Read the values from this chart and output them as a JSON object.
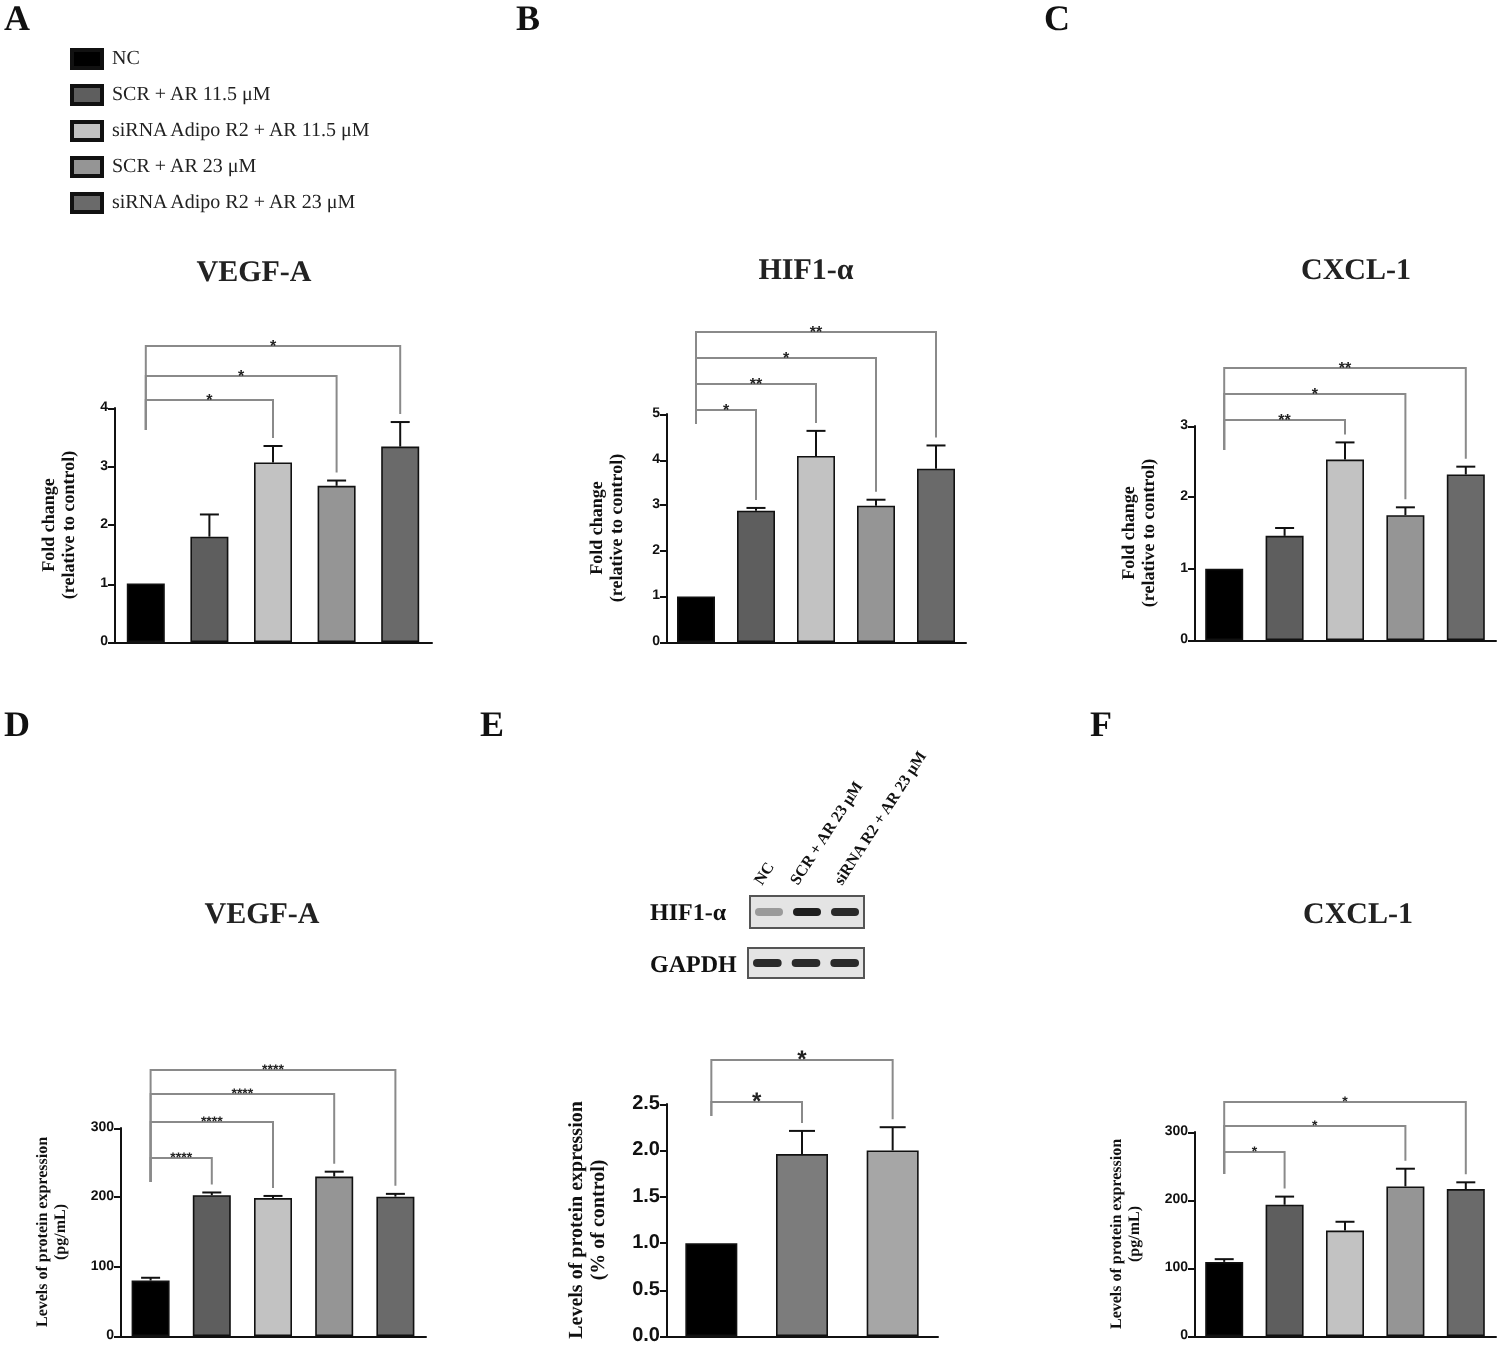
{
  "chart_data": [
    {
      "type": "bar",
      "title": "VEGF-A",
      "ylabel": "Fold change\n(relative to control)",
      "categories": [
        null,
        null,
        null,
        null,
        null
      ],
      "series": [
        {
          "name": "NC",
          "color": "#000000",
          "values": [
            1.0,
            null,
            null,
            null,
            null
          ]
        },
        {
          "name": "SCR + AR 11.5 μM",
          "color": "#5e5e5e",
          "values": [
            null,
            1.8,
            null,
            null,
            null
          ],
          "errors": [
            null,
            [
              1.8,
              2.18
            ],
            null,
            null,
            null
          ]
        },
        {
          "name": "siRNA Adipo R2 + AR 11.5 μM",
          "color": "#c2c2c2",
          "values": [
            null,
            null,
            3.07,
            null,
            null
          ],
          "errors": [
            null,
            null,
            [
              3.07,
              3.35
            ],
            null,
            null
          ]
        },
        {
          "name": "SCR + AR 23 μM",
          "color": "#959595",
          "values": [
            null,
            null,
            null,
            2.67,
            null
          ],
          "errors": [
            null,
            null,
            null,
            [
              2.67,
              2.76
            ],
            null
          ]
        },
        {
          "name": "siRNA Adipo R2 + AR 23 μM",
          "color": "#6a6a6a",
          "values": [
            null,
            null,
            null,
            null,
            3.34
          ],
          "errors": [
            null,
            null,
            null,
            null,
            [
              3.34,
              3.76
            ]
          ]
        }
      ],
      "ylim": [
        0,
        4
      ],
      "yticks": [
        0,
        1,
        2,
        3,
        4
      ],
      "legend": "top left",
      "annotations": [
        "A",
        "*",
        "*",
        "*"
      ]
    },
    {
      "type": "bar",
      "title": "HIF1-α",
      "ylabel": "Fold change\n(relative to control)",
      "categories": [
        null,
        null,
        null,
        null,
        null
      ],
      "values": [
        1.0,
        2.88,
        4.08,
        2.99,
        3.8
      ],
      "colors": [
        "#000000",
        "#5e5e5e",
        "#c2c2c2",
        "#959595",
        "#6a6a6a"
      ],
      "errors": [
        null,
        [
          2.88,
          2.94
        ],
        [
          4.08,
          4.63
        ],
        [
          2.99,
          3.12
        ],
        [
          3.8,
          4.31
        ]
      ],
      "ylim": [
        0,
        5
      ],
      "yticks": [
        0,
        1,
        2,
        3,
        4,
        5
      ],
      "annotations": [
        "B",
        "*",
        "**",
        "*",
        "**"
      ]
    },
    {
      "type": "bar",
      "title": "CXCL-1",
      "ylabel": "Fold change\n(relative to control)",
      "categories": [
        null,
        null,
        null,
        null,
        null
      ],
      "values": [
        1.0,
        1.46,
        2.53,
        1.75,
        2.32
      ],
      "colors": [
        "#000000",
        "#5e5e5e",
        "#c2c2c2",
        "#959595",
        "#6a6a6a"
      ],
      "errors": [
        null,
        [
          1.46,
          1.57
        ],
        [
          2.53,
          2.77
        ],
        [
          1.75,
          1.86
        ],
        [
          2.32,
          2.43
        ]
      ],
      "ylim": [
        0,
        3
      ],
      "yticks": [
        0,
        1,
        2,
        3
      ],
      "annotations": [
        "C",
        "**",
        "*",
        "**"
      ]
    },
    {
      "type": "bar",
      "title": "VEGF-A",
      "ylabel": "Levels of protein expression\n(pg/mL)",
      "categories": [
        null,
        null,
        null,
        null,
        null
      ],
      "values": [
        80,
        203,
        199,
        230,
        201
      ],
      "colors": [
        "#000000",
        "#5e5e5e",
        "#c2c2c2",
        "#959595",
        "#6a6a6a"
      ],
      "errors": [
        [
          80,
          84
        ],
        [
          203,
          207
        ],
        [
          199,
          202
        ],
        [
          230,
          237
        ],
        [
          201,
          205
        ]
      ],
      "ylim": [
        0,
        300
      ],
      "yticks": [
        0,
        100,
        200,
        300
      ],
      "annotations": [
        "D",
        "****",
        "****",
        "****",
        "****"
      ]
    },
    {
      "type": "bar",
      "ylabel": "Levels of protein expression\n(% of control)",
      "categories": [
        null,
        null,
        null
      ],
      "values": [
        1.0,
        1.96,
        2.0
      ],
      "colors": [
        "#000000",
        "#7c7c7c",
        "#a6a6a6"
      ],
      "errors": [
        null,
        [
          1.96,
          2.21
        ],
        [
          2.0,
          2.25
        ]
      ],
      "ylim": [
        0,
        2.5
      ],
      "yticks": [
        {
          "value": 0,
          "label": "0.0"
        },
        0.5,
        {
          "value": 1,
          "label": "1.0"
        },
        1.5,
        {
          "value": 2,
          "label": "2.0"
        },
        2.5
      ],
      "annotations": [
        "E",
        "HIF1-α",
        "GAPDH",
        "NC",
        "SCR + AR 23 μM",
        "siRNA R2 + AR 23 μM",
        "*",
        "*"
      ]
    },
    {
      "type": "bar",
      "title": "CXCL-1",
      "ylabel": "Levels of protein expression\n(pg/mL)",
      "categories": [
        null,
        null,
        null,
        null,
        null
      ],
      "values": [
        109,
        193,
        155,
        220,
        216
      ],
      "colors": [
        "#000000",
        "#5e5e5e",
        "#c2c2c2",
        "#959595",
        "#6a6a6a"
      ],
      "errors": [
        [
          109,
          113
        ],
        [
          193,
          205
        ],
        [
          155,
          168
        ],
        [
          220,
          246
        ],
        [
          216,
          226
        ]
      ],
      "ylim": [
        0,
        300
      ],
      "yticks": [
        0,
        100,
        200,
        300
      ],
      "annotations": [
        "F",
        "*",
        "*",
        "*"
      ]
    }
  ]
}
